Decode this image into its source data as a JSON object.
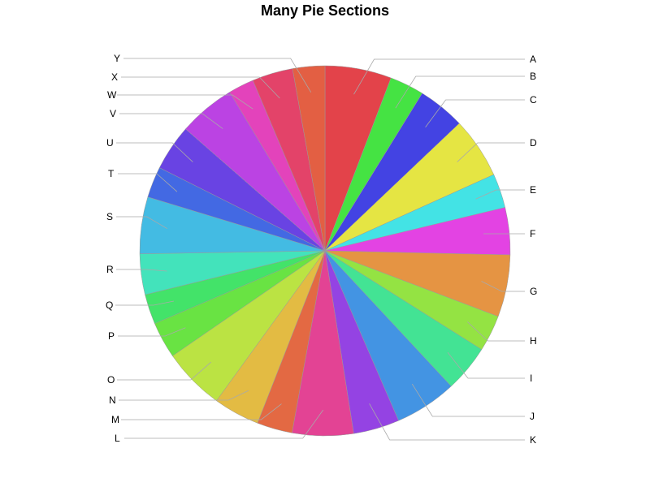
{
  "chart_data": {
    "type": "pie",
    "title": "Many Pie Sections",
    "start_angle_deg": 0,
    "direction": "clockwise",
    "slices": [
      {
        "label": "A",
        "value": 6.2,
        "color": "#e3434a"
      },
      {
        "label": "B",
        "value": 3.2,
        "color": "#45e343"
      },
      {
        "label": "C",
        "value": 4.4,
        "color": "#4343e3"
      },
      {
        "label": "D",
        "value": 5.7,
        "color": "#e5e543"
      },
      {
        "label": "E",
        "value": 3.2,
        "color": "#43e3e5"
      },
      {
        "label": "F",
        "value": 4.4,
        "color": "#e343e3"
      },
      {
        "label": "G",
        "value": 5.8,
        "color": "#e59443"
      },
      {
        "label": "H",
        "value": 3.4,
        "color": "#94e343"
      },
      {
        "label": "I",
        "value": 4.4,
        "color": "#43e394"
      },
      {
        "label": "J",
        "value": 5.8,
        "color": "#4394e3"
      },
      {
        "label": "K",
        "value": 4.3,
        "color": "#9443e3"
      },
      {
        "label": "L",
        "value": 5.7,
        "color": "#e34394"
      },
      {
        "label": "M",
        "value": 3.3,
        "color": "#e36943"
      },
      {
        "label": "N",
        "value": 4.3,
        "color": "#e3bb43"
      },
      {
        "label": "O",
        "value": 5.8,
        "color": "#bbe343"
      },
      {
        "label": "P",
        "value": 3.4,
        "color": "#69e343"
      },
      {
        "label": "Q",
        "value": 2.8,
        "color": "#43e369"
      },
      {
        "label": "R",
        "value": 3.8,
        "color": "#43e3bb"
      },
      {
        "label": "S",
        "value": 5.3,
        "color": "#43bbe3"
      },
      {
        "label": "T",
        "value": 2.9,
        "color": "#4369e3"
      },
      {
        "label": "U",
        "value": 4.3,
        "color": "#6943e3"
      },
      {
        "label": "V",
        "value": 5.3,
        "color": "#bb43e3"
      },
      {
        "label": "W",
        "value": 2.4,
        "color": "#e343bb"
      },
      {
        "label": "X",
        "value": 3.8,
        "color": "#e34369"
      },
      {
        "label": "Y",
        "value": 3.0,
        "color": "#e35f43"
      }
    ]
  }
}
